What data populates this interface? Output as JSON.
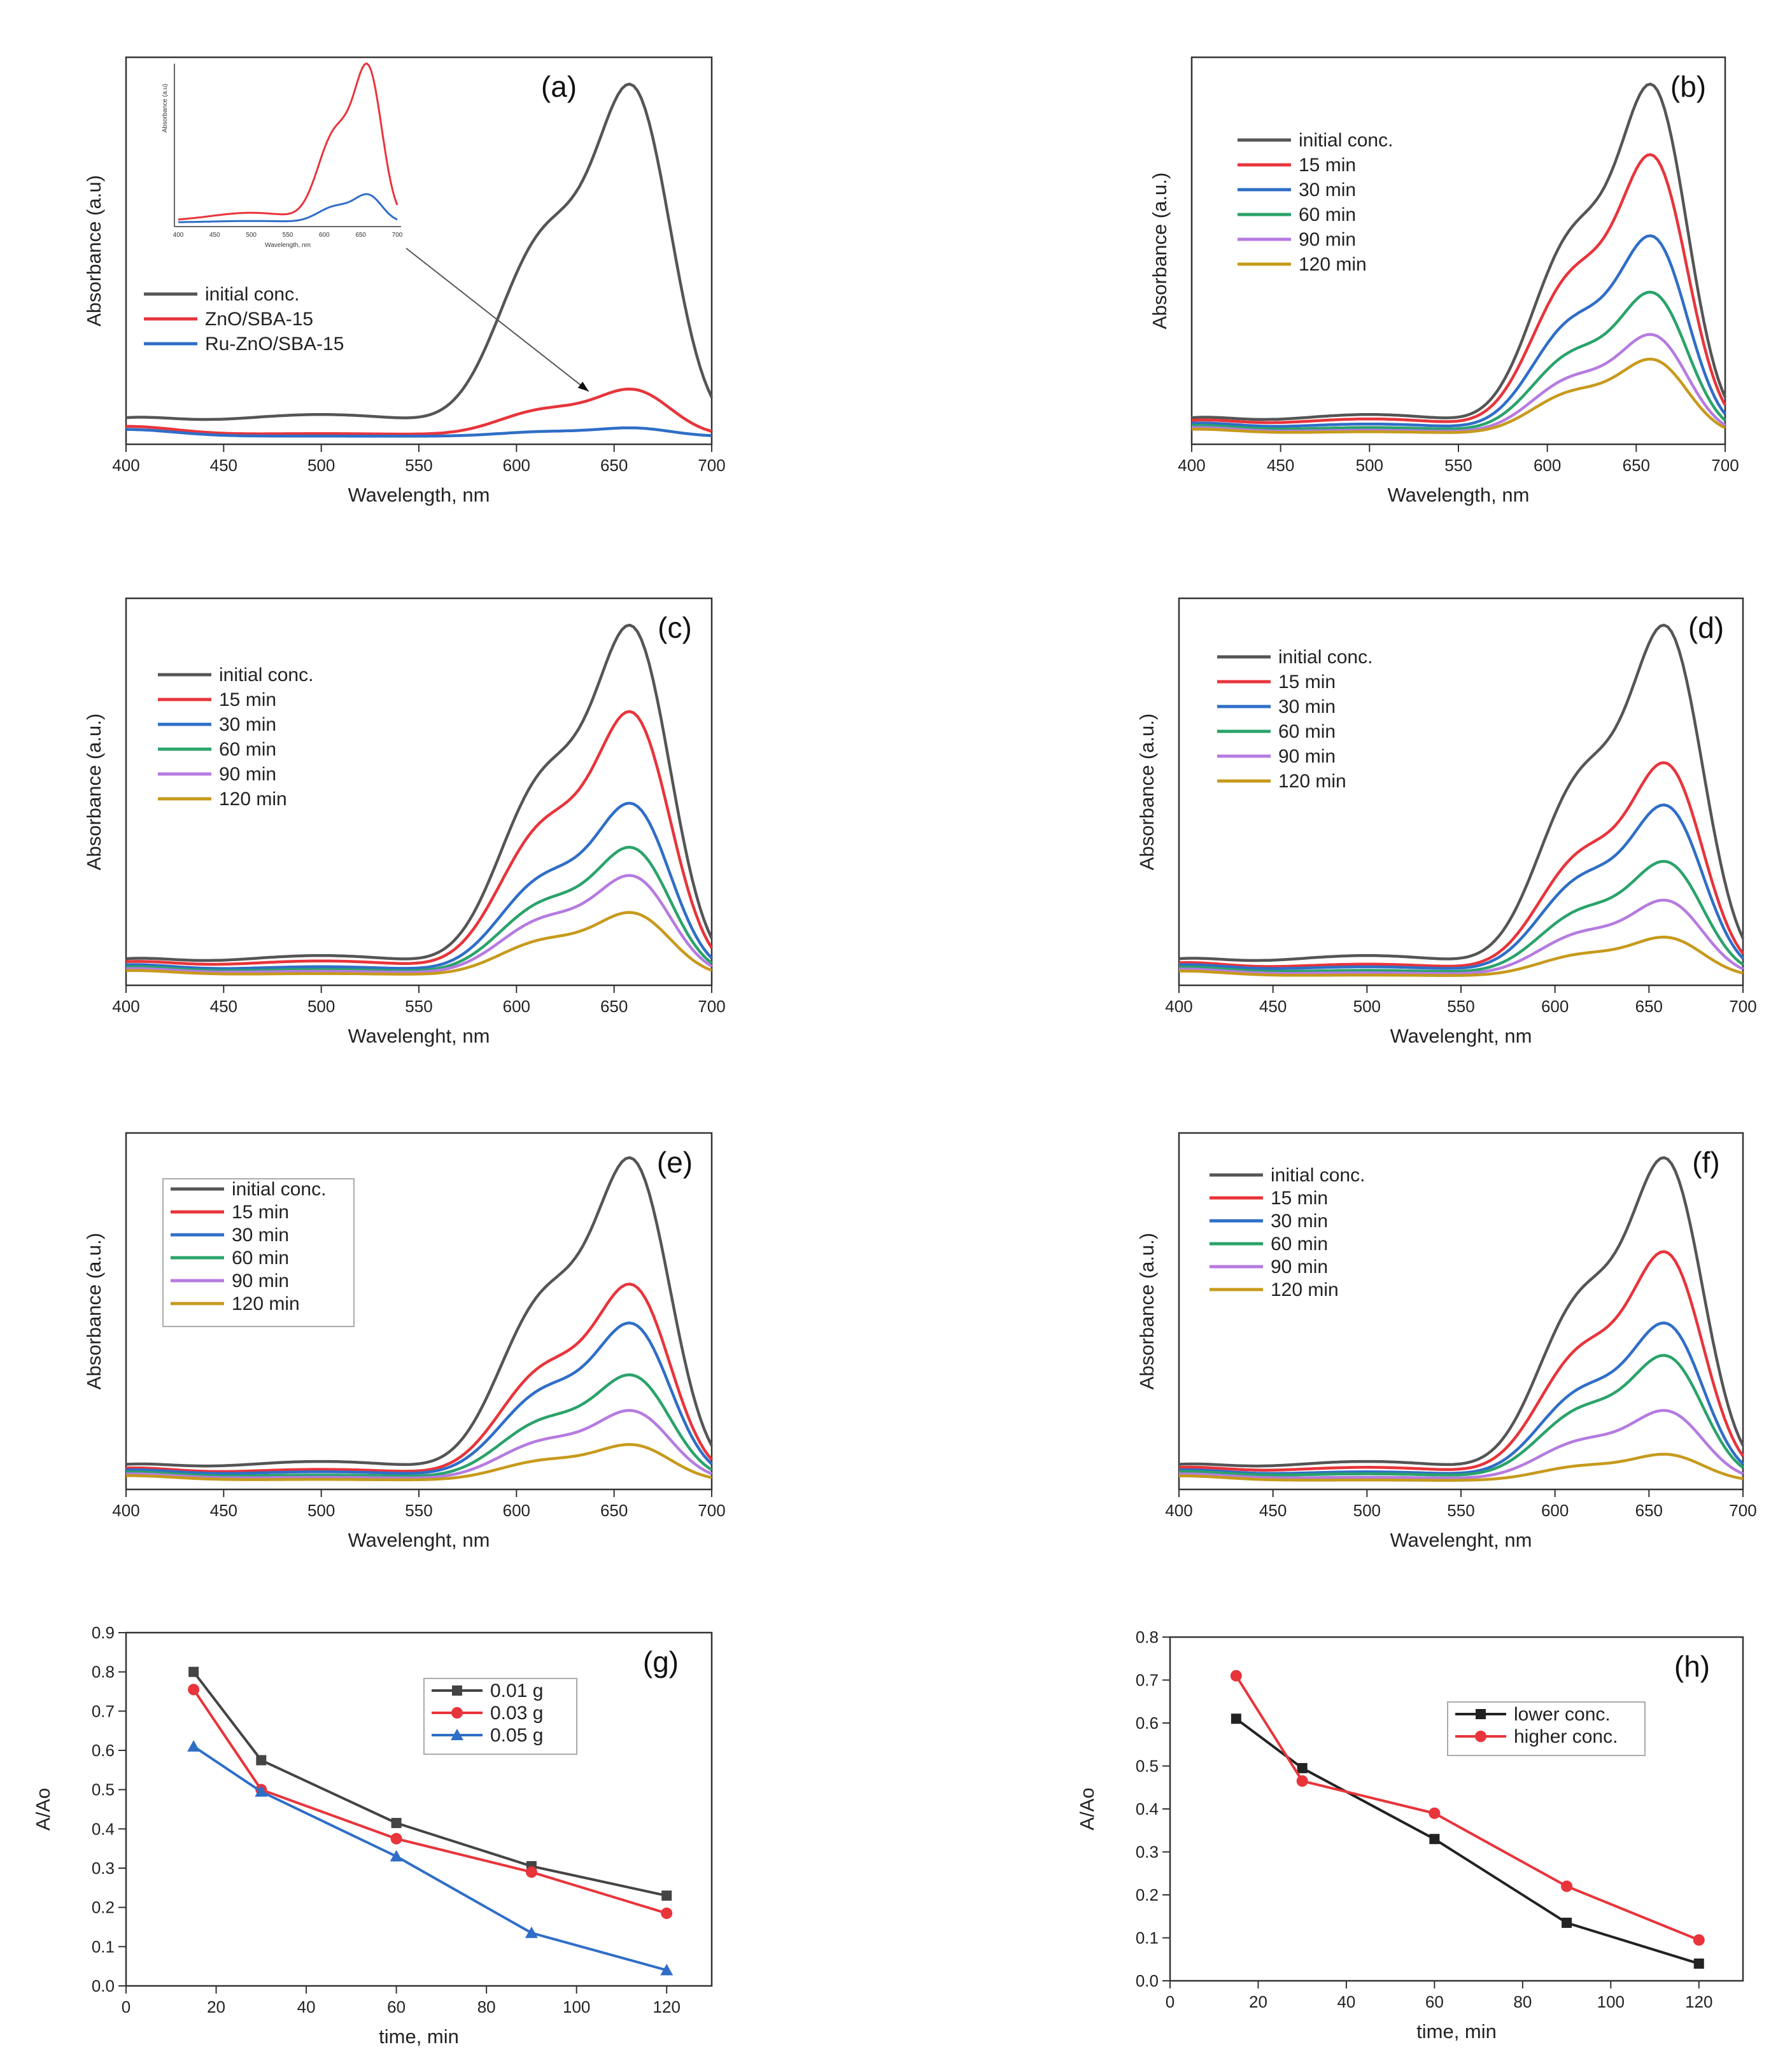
{
  "figure": {
    "panels": [
      "a",
      "b",
      "c",
      "d",
      "e",
      "f",
      "g",
      "h"
    ]
  },
  "colors": {
    "initial": "#555555",
    "red": "#e8343b",
    "blue": "#2f6ec7",
    "green": "#2aa36a",
    "violet": "#b57be0",
    "gold": "#c79a1c",
    "black": "#222222"
  },
  "chart_data": [
    {
      "id": "a",
      "type": "line",
      "title": "(a)",
      "xlabel": "Wavelength, nm",
      "ylabel": "Absorbance (a.u)",
      "xlim": [
        400,
        700
      ],
      "xticks": [
        400,
        450,
        500,
        550,
        600,
        650,
        700
      ],
      "ylim": [
        0,
        1
      ],
      "legend_position": "left",
      "series": [
        {
          "name": "initial conc.",
          "color": "#555555",
          "scale": 1.0
        },
        {
          "name": "ZnO/SBA-15",
          "color": "#e8343b",
          "scale": 0.135
        },
        {
          "name": "Ru-ZnO/SBA-15",
          "color": "#2f6ec7",
          "scale": 0.025
        }
      ],
      "inset": {
        "xlabel": "Wavelength, nm",
        "ylabel": "Absorbance (a.u)",
        "xticks": [
          400,
          450,
          500,
          550,
          600,
          650,
          700
        ],
        "series": [
          {
            "name": "ZnO/SBA-15",
            "color": "#e8343b",
            "scale": 1.0
          },
          {
            "name": "Ru-ZnO/SBA-15",
            "color": "#2f6ec7",
            "scale": 0.18
          }
        ]
      }
    },
    {
      "id": "b",
      "type": "line",
      "title": "(b)",
      "xlabel": "Wavelength, nm",
      "ylabel": "Absorbance (a.u.)",
      "xlim": [
        400,
        700
      ],
      "xticks": [
        400,
        450,
        500,
        550,
        600,
        650,
        700
      ],
      "ylim": [
        0,
        1
      ],
      "series": [
        {
          "name": "initial conc.",
          "color": "#555555",
          "scale": 1.0
        },
        {
          "name": "15 min",
          "color": "#e8343b",
          "scale": 0.8
        },
        {
          "name": "30 min",
          "color": "#2f6ec7",
          "scale": 0.57
        },
        {
          "name": "60 min",
          "color": "#2aa36a",
          "scale": 0.41
        },
        {
          "name": "90 min",
          "color": "#b57be0",
          "scale": 0.29
        },
        {
          "name": "120 min",
          "color": "#c79a1c",
          "scale": 0.22
        }
      ]
    },
    {
      "id": "c",
      "type": "line",
      "title": "(c)",
      "xlabel": "Wavelenght, nm",
      "ylabel": "Absorbance (a.u.)",
      "xlim": [
        400,
        700
      ],
      "xticks": [
        400,
        450,
        500,
        550,
        600,
        650,
        700
      ],
      "ylim": [
        0,
        1
      ],
      "series": [
        {
          "name": "initial conc.",
          "color": "#555555",
          "scale": 1.0
        },
        {
          "name": "15 min",
          "color": "#e8343b",
          "scale": 0.755
        },
        {
          "name": "30 min",
          "color": "#2f6ec7",
          "scale": 0.495
        },
        {
          "name": "60 min",
          "color": "#2aa36a",
          "scale": 0.37
        },
        {
          "name": "90 min",
          "color": "#b57be0",
          "scale": 0.29
        },
        {
          "name": "120 min",
          "color": "#c79a1c",
          "scale": 0.185
        }
      ]
    },
    {
      "id": "d",
      "type": "line",
      "title": "(d)",
      "xlabel": "Wavelenght, nm",
      "ylabel": "Absorbance (a.u.)",
      "xlim": [
        400,
        700
      ],
      "xticks": [
        400,
        450,
        500,
        550,
        600,
        650,
        700
      ],
      "ylim": [
        0,
        1
      ],
      "series": [
        {
          "name": "initial conc.",
          "color": "#555555",
          "scale": 1.0
        },
        {
          "name": "15 min",
          "color": "#e8343b",
          "scale": 0.61
        },
        {
          "name": "30 min",
          "color": "#2f6ec7",
          "scale": 0.49
        },
        {
          "name": "60 min",
          "color": "#2aa36a",
          "scale": 0.33
        },
        {
          "name": "90 min",
          "color": "#b57be0",
          "scale": 0.22
        },
        {
          "name": "120 min",
          "color": "#c79a1c",
          "scale": 0.115
        }
      ]
    },
    {
      "id": "e",
      "type": "line",
      "title": "(e)",
      "xlabel": "Wavelenght, nm",
      "ylabel": "Absorbance (a.u.)",
      "xlim": [
        400,
        700
      ],
      "xticks": [
        400,
        450,
        500,
        550,
        600,
        650,
        700
      ],
      "ylim": [
        0,
        1
      ],
      "legend_box": true,
      "series": [
        {
          "name": "initial conc.",
          "color": "#555555",
          "scale": 1.0
        },
        {
          "name": "15 min",
          "color": "#e8343b",
          "scale": 0.61
        },
        {
          "name": "30 min",
          "color": "#2f6ec7",
          "scale": 0.49
        },
        {
          "name": "60 min",
          "color": "#2aa36a",
          "scale": 0.33
        },
        {
          "name": "90 min",
          "color": "#b57be0",
          "scale": 0.22
        },
        {
          "name": "120 min",
          "color": "#c79a1c",
          "scale": 0.115
        }
      ]
    },
    {
      "id": "f",
      "type": "line",
      "title": "(f)",
      "xlabel": "Wavelenght, nm",
      "ylabel": "Absorbance (a.u.)",
      "xlim": [
        400,
        700
      ],
      "xticks": [
        400,
        450,
        500,
        550,
        600,
        650,
        700
      ],
      "ylim": [
        0,
        1
      ],
      "series": [
        {
          "name": "initial conc.",
          "color": "#555555",
          "scale": 1.0
        },
        {
          "name": "15 min",
          "color": "#e8343b",
          "scale": 0.71
        },
        {
          "name": "30 min",
          "color": "#2f6ec7",
          "scale": 0.49
        },
        {
          "name": "60 min",
          "color": "#2aa36a",
          "scale": 0.39
        },
        {
          "name": "90 min",
          "color": "#b57be0",
          "scale": 0.22
        },
        {
          "name": "120 min",
          "color": "#c79a1c",
          "scale": 0.085
        }
      ]
    },
    {
      "id": "g",
      "type": "line",
      "title": "(g)",
      "xlabel": "time, min",
      "ylabel": "A/Ao",
      "xlim": [
        0,
        130
      ],
      "xticks": [
        0,
        20,
        40,
        60,
        80,
        100,
        120
      ],
      "ylim": [
        0,
        0.9
      ],
      "yticks": [
        0.0,
        0.1,
        0.2,
        0.3,
        0.4,
        0.5,
        0.6,
        0.7,
        0.8,
        0.9
      ],
      "legend_box": true,
      "x": [
        15,
        30,
        60,
        90,
        120
      ],
      "series": [
        {
          "name": "0.01 g",
          "color": "#444444",
          "marker": "square",
          "values": [
            0.8,
            0.575,
            0.415,
            0.305,
            0.23
          ]
        },
        {
          "name": "0.03 g",
          "color": "#e8343b",
          "marker": "circle",
          "values": [
            0.755,
            0.5,
            0.375,
            0.29,
            0.185
          ]
        },
        {
          "name": "0.05 g",
          "color": "#2f6ec7",
          "marker": "triangle",
          "values": [
            0.61,
            0.495,
            0.33,
            0.135,
            0.04
          ]
        }
      ]
    },
    {
      "id": "h",
      "type": "line",
      "title": "(h)",
      "xlabel": "time, min",
      "ylabel": "A/Ao",
      "xlim": [
        0,
        130
      ],
      "xticks": [
        0,
        20,
        40,
        60,
        80,
        100,
        120
      ],
      "ylim": [
        0,
        0.8
      ],
      "yticks": [
        0.0,
        0.1,
        0.2,
        0.3,
        0.4,
        0.5,
        0.6,
        0.7,
        0.8
      ],
      "legend_box": true,
      "x": [
        15,
        30,
        60,
        90,
        120
      ],
      "series": [
        {
          "name": "lower conc.",
          "color": "#222222",
          "marker": "square",
          "values": [
            0.61,
            0.495,
            0.33,
            0.135,
            0.04
          ]
        },
        {
          "name": "higher conc.",
          "color": "#e8343b",
          "marker": "circle",
          "values": [
            0.71,
            0.465,
            0.39,
            0.22,
            0.095
          ]
        }
      ]
    }
  ]
}
